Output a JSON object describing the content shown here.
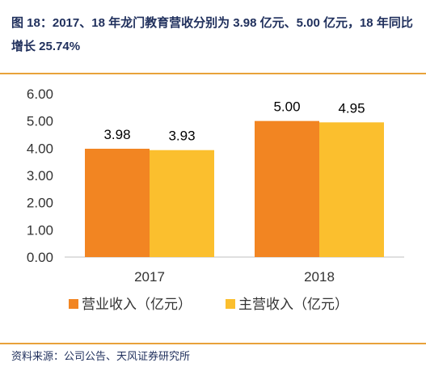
{
  "caption": "图 18：2017、18 年龙门教育营收分别为 3.98 亿元、5.00 亿元，18 年同比增长 25.74%",
  "source": "资料来源：公司公告、天风证券研究所",
  "colors": {
    "series1": "#f28522",
    "series2": "#fbbf2e",
    "rule": "#e8a23a",
    "axis": "#bfbfbf"
  },
  "chart_data": {
    "type": "bar",
    "categories": [
      "2017",
      "2018"
    ],
    "series": [
      {
        "name": "营业收入（亿元）",
        "values": [
          3.98,
          5.0
        ]
      },
      {
        "name": "主营收入（亿元）",
        "values": [
          3.93,
          4.95
        ]
      }
    ],
    "ylim": [
      0,
      6
    ],
    "yticks": [
      "0.00",
      "1.00",
      "2.00",
      "3.00",
      "4.00",
      "5.00",
      "6.00"
    ],
    "data_labels": [
      [
        "3.98",
        "5.00"
      ],
      [
        "3.93",
        "4.95"
      ]
    ],
    "legend_position": "bottom",
    "grid": false
  }
}
